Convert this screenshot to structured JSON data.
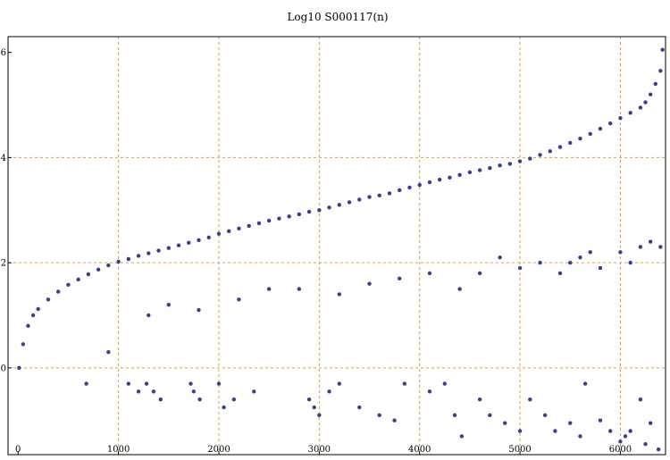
{
  "chart_data": {
    "type": "scatter",
    "title": "Log10 S000117(n)",
    "xlabel": "",
    "ylabel": "",
    "xlim": [
      -100,
      6450
    ],
    "ylim": [
      -1.65,
      6.3
    ],
    "x_ticks": [
      0,
      1000,
      2000,
      3000,
      4000,
      5000,
      6000
    ],
    "y_ticks": [
      0,
      2,
      4,
      6
    ],
    "gridlines_x": [
      1000,
      2000,
      3000,
      4000,
      5000,
      6000
    ],
    "gridlines_y": [
      0,
      2,
      4
    ],
    "grid": true,
    "colors": {
      "points": "#3b3b9c",
      "grid": "#e69a3c",
      "frame": "#000000"
    },
    "series": [
      {
        "points": [
          [
            10,
            0.0
          ],
          [
            50,
            0.45
          ],
          [
            100,
            0.8
          ],
          [
            150,
            1.0
          ],
          [
            200,
            1.12
          ],
          [
            300,
            1.3
          ],
          [
            400,
            1.45
          ],
          [
            500,
            1.58
          ],
          [
            600,
            1.68
          ],
          [
            700,
            1.78
          ],
          [
            800,
            1.87
          ],
          [
            900,
            1.95
          ],
          [
            1000,
            2.02
          ],
          [
            1100,
            2.07
          ],
          [
            1200,
            2.13
          ],
          [
            1300,
            2.18
          ],
          [
            1400,
            2.23
          ],
          [
            1500,
            2.28
          ],
          [
            1600,
            2.33
          ],
          [
            1700,
            2.38
          ],
          [
            1800,
            2.43
          ],
          [
            1900,
            2.48
          ],
          [
            2000,
            2.55
          ],
          [
            2100,
            2.6
          ],
          [
            2200,
            2.65
          ],
          [
            2300,
            2.7
          ],
          [
            2400,
            2.75
          ],
          [
            2500,
            2.8
          ],
          [
            2600,
            2.84
          ],
          [
            2700,
            2.88
          ],
          [
            2800,
            2.92
          ],
          [
            2900,
            2.97
          ],
          [
            3000,
            3.0
          ],
          [
            3100,
            3.05
          ],
          [
            3200,
            3.1
          ],
          [
            3300,
            3.15
          ],
          [
            3400,
            3.2
          ],
          [
            3500,
            3.25
          ],
          [
            3600,
            3.28
          ],
          [
            3700,
            3.32
          ],
          [
            3800,
            3.38
          ],
          [
            3900,
            3.43
          ],
          [
            4000,
            3.48
          ],
          [
            4100,
            3.53
          ],
          [
            4200,
            3.58
          ],
          [
            4300,
            3.62
          ],
          [
            4400,
            3.67
          ],
          [
            4500,
            3.72
          ],
          [
            4600,
            3.76
          ],
          [
            4700,
            3.8
          ],
          [
            4800,
            3.85
          ],
          [
            4900,
            3.88
          ],
          [
            5000,
            3.93
          ],
          [
            5100,
            3.98
          ],
          [
            5200,
            4.05
          ],
          [
            5300,
            4.12
          ],
          [
            5400,
            4.2
          ],
          [
            5500,
            4.28
          ],
          [
            5600,
            4.36
          ],
          [
            5700,
            4.45
          ],
          [
            5800,
            4.55
          ],
          [
            5900,
            4.65
          ],
          [
            6000,
            4.75
          ],
          [
            6100,
            4.85
          ],
          [
            6200,
            4.95
          ],
          [
            6250,
            5.05
          ],
          [
            6300,
            5.2
          ],
          [
            6350,
            5.4
          ],
          [
            6400,
            5.65
          ],
          [
            6420,
            6.05
          ],
          [
            680,
            -0.3
          ],
          [
            1100,
            -0.3
          ],
          [
            1200,
            -0.45
          ],
          [
            1280,
            -0.3
          ],
          [
            1350,
            -0.45
          ],
          [
            1420,
            -0.6
          ],
          [
            1720,
            -0.3
          ],
          [
            1750,
            -0.45
          ],
          [
            1810,
            -0.6
          ],
          [
            2000,
            -0.3
          ],
          [
            2050,
            -0.75
          ],
          [
            2150,
            -0.6
          ],
          [
            2350,
            -0.45
          ],
          [
            2900,
            -0.6
          ],
          [
            2950,
            -0.75
          ],
          [
            3000,
            -0.9
          ],
          [
            3100,
            -0.45
          ],
          [
            3200,
            -0.3
          ],
          [
            3400,
            -0.75
          ],
          [
            3600,
            -0.9
          ],
          [
            3750,
            -1.0
          ],
          [
            3850,
            -0.3
          ],
          [
            4100,
            -0.45
          ],
          [
            4250,
            -0.3
          ],
          [
            4350,
            -0.9
          ],
          [
            4420,
            -1.3
          ],
          [
            4600,
            -0.6
          ],
          [
            4700,
            -0.9
          ],
          [
            4850,
            -1.05
          ],
          [
            5000,
            -1.2
          ],
          [
            5100,
            -0.6
          ],
          [
            5250,
            -0.9
          ],
          [
            5350,
            -1.2
          ],
          [
            5500,
            -1.05
          ],
          [
            5600,
            -1.3
          ],
          [
            5650,
            -0.3
          ],
          [
            5800,
            -1.0
          ],
          [
            5900,
            -1.2
          ],
          [
            6000,
            -1.4
          ],
          [
            6050,
            -1.3
          ],
          [
            6100,
            -1.2
          ],
          [
            6200,
            -0.6
          ],
          [
            6250,
            -1.45
          ],
          [
            6300,
            -1.05
          ],
          [
            6380,
            -1.55
          ],
          [
            900,
            0.3
          ],
          [
            1300,
            1.0
          ],
          [
            1500,
            1.2
          ],
          [
            1800,
            1.1
          ],
          [
            2200,
            1.3
          ],
          [
            2500,
            1.5
          ],
          [
            2800,
            1.5
          ],
          [
            3200,
            1.4
          ],
          [
            3500,
            1.6
          ],
          [
            3800,
            1.7
          ],
          [
            4100,
            1.8
          ],
          [
            4400,
            1.5
          ],
          [
            4600,
            1.8
          ],
          [
            4800,
            2.1
          ],
          [
            5000,
            1.9
          ],
          [
            5200,
            2.0
          ],
          [
            5400,
            1.8
          ],
          [
            5500,
            2.0
          ],
          [
            5600,
            2.1
          ],
          [
            5700,
            2.2
          ],
          [
            5800,
            1.9
          ],
          [
            6000,
            2.2
          ],
          [
            6100,
            2.0
          ],
          [
            6200,
            2.3
          ],
          [
            6300,
            2.4
          ],
          [
            6400,
            2.3
          ]
        ]
      }
    ]
  }
}
